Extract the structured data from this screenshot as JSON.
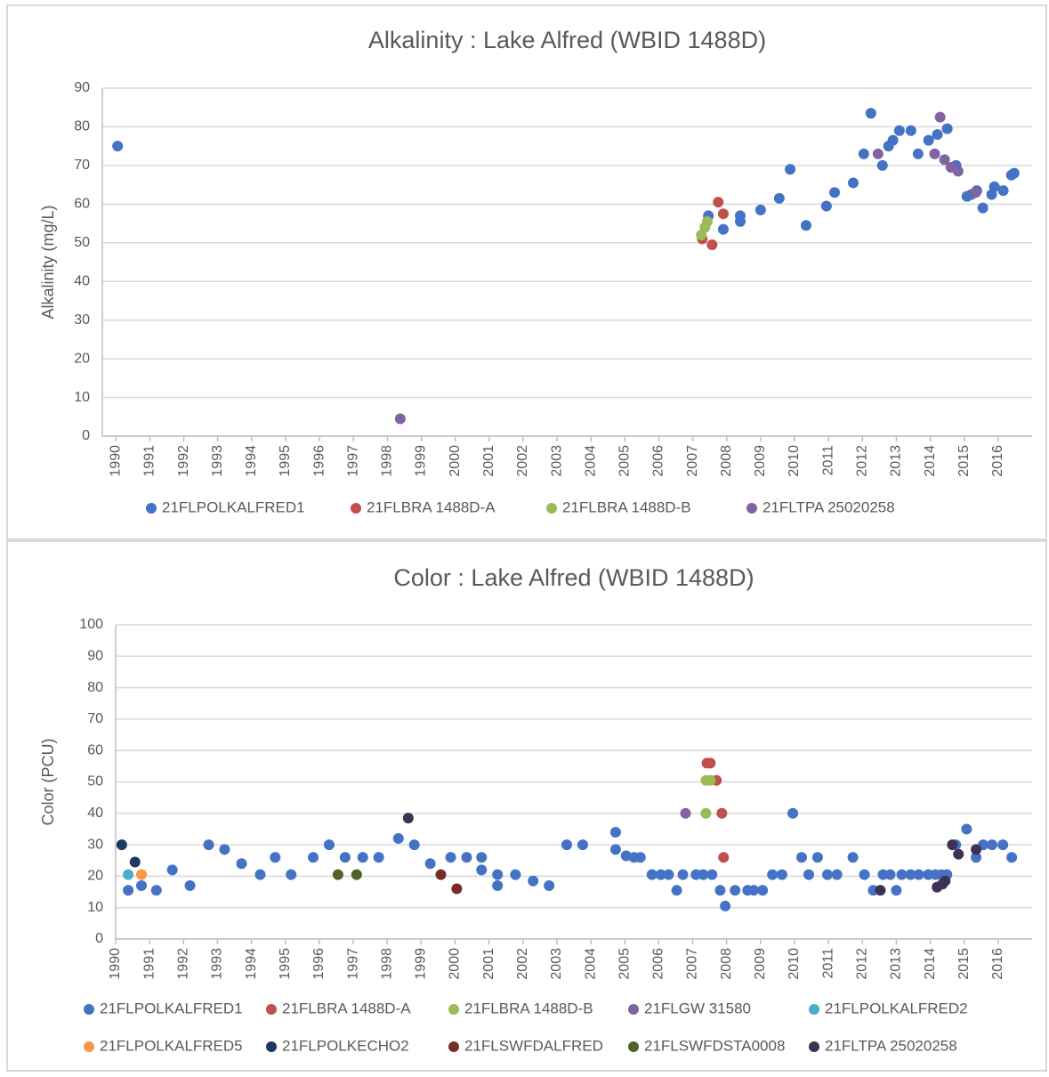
{
  "chart_data": [
    {
      "type": "scatter",
      "title": "Alkalinity : Lake Alfred (WBID 1488D)",
      "y_label": "Alkalinity (mg/L)",
      "xlim": [
        1989.6,
        2017
      ],
      "xticks": [
        1990,
        1991,
        1992,
        1993,
        1994,
        1995,
        1996,
        1997,
        1998,
        1999,
        2000,
        2001,
        2002,
        2003,
        2004,
        2005,
        2006,
        2007,
        2008,
        2009,
        2010,
        2011,
        2012,
        2013,
        2014,
        2015,
        2016
      ],
      "ylim": [
        0,
        90
      ],
      "yticks": [
        0,
        10,
        20,
        30,
        40,
        50,
        60,
        70,
        80,
        90
      ],
      "grid": true,
      "legend": "bottom",
      "series": [
        {
          "name": "21FLPOLKALFRED1",
          "color": "#4472c4",
          "x": [
            1990.05,
            2007.46,
            2007.9,
            2008.4,
            2008.4,
            2009.0,
            2009.55,
            2009.87,
            2010.34,
            2010.94,
            2011.18,
            2011.73,
            2012.04,
            2012.25,
            2012.59,
            2012.77,
            2012.9,
            2013.09,
            2013.43,
            2013.64,
            2013.95,
            2014.21,
            2014.5,
            2014.76,
            2015.08,
            2015.21,
            2015.37,
            2015.55,
            2015.81,
            2015.89,
            2016.15,
            2016.39,
            2016.47
          ],
          "values": [
            75,
            57,
            53.5,
            57,
            55.5,
            58.5,
            61.5,
            69,
            54.5,
            59.5,
            63,
            65.5,
            73,
            83.5,
            70,
            75,
            76.5,
            79,
            79,
            73,
            76.5,
            78,
            79.5,
            70,
            62,
            62.5,
            63.5,
            59,
            62.5,
            64.5,
            63.5,
            67.5,
            68
          ]
        },
        {
          "name": "21FLBRA 1488D-A",
          "color": "#c0504d",
          "x": [
            2007.28,
            2007.57,
            2007.75,
            2007.9
          ],
          "values": [
            51,
            49.5,
            60.5,
            57.5
          ]
        },
        {
          "name": "21FLBRA 1488D-B",
          "color": "#9bbb59",
          "x": [
            2007.25,
            2007.36,
            2007.43
          ],
          "values": [
            52,
            54,
            55.5
          ]
        },
        {
          "name": "21FLTPA 25020258",
          "color": "#8064a2",
          "x": [
            1998.38,
            2012.46,
            2014.29,
            2014.13,
            2014.42,
            2014.61,
            2014.82,
            2015.34
          ],
          "values": [
            4.5,
            73,
            82.5,
            73,
            71.5,
            69.5,
            68.5,
            63
          ]
        }
      ]
    },
    {
      "type": "scatter",
      "title": "Color : Lake Alfred (WBID 1488D)",
      "y_label": "Color (PCU)",
      "xlim": [
        1990,
        2017
      ],
      "xticks": [
        1990,
        1991,
        1992,
        1993,
        1994,
        1995,
        1996,
        1997,
        1998,
        1999,
        2000,
        2001,
        2002,
        2003,
        2004,
        2005,
        2006,
        2007,
        2008,
        2009,
        2010,
        2011,
        2012,
        2013,
        2014,
        2015,
        2016
      ],
      "ylim": [
        0,
        100
      ],
      "yticks": [
        0,
        10,
        20,
        30,
        40,
        50,
        60,
        70,
        80,
        90,
        100
      ],
      "grid": true,
      "legend": "bottom",
      "series": [
        {
          "name": "21FLPOLKALFRED1",
          "color": "#4472c4",
          "x": [
            1990.37,
            1990.76,
            1991.2,
            1991.67,
            1992.19,
            1992.74,
            1993.21,
            1993.71,
            1994.26,
            1994.7,
            1995.17,
            1995.82,
            1996.29,
            1996.76,
            1997.28,
            1997.75,
            1998.33,
            1998.8,
            1999.27,
            1999.87,
            2000.34,
            2000.78,
            2000.78,
            2001.25,
            2001.25,
            2001.78,
            2002.3,
            2002.77,
            2003.29,
            2003.76,
            2004.73,
            2004.73,
            2005.04,
            2005.27,
            2005.46,
            2005.8,
            2006.06,
            2006.29,
            2006.53,
            2006.71,
            2007.1,
            2007.31,
            2007.57,
            2007.81,
            2007.96,
            2008.25,
            2008.62,
            2008.8,
            2009.06,
            2009.35,
            2009.63,
            2009.95,
            2010.21,
            2010.42,
            2010.68,
            2010.97,
            2011.25,
            2011.72,
            2012.06,
            2012.32,
            2012.61,
            2012.82,
            2013.0,
            2013.16,
            2013.42,
            2013.66,
            2013.94,
            2014.15,
            2014.33,
            2014.49,
            2014.75,
            2015.07,
            2015.35,
            2015.56,
            2015.82,
            2016.14,
            2016.4
          ],
          "values": [
            15.5,
            17,
            15.5,
            22,
            17,
            30,
            28.5,
            24,
            20.5,
            26,
            20.5,
            26,
            30,
            26,
            26,
            26,
            32,
            30,
            24,
            26,
            26,
            26,
            22,
            20.5,
            17,
            20.5,
            18.5,
            17,
            30,
            30,
            34,
            28.5,
            26.5,
            26,
            26,
            20.5,
            20.5,
            20.5,
            15.5,
            20.5,
            20.5,
            20.5,
            20.5,
            15.5,
            10.5,
            15.5,
            15.5,
            15.5,
            15.5,
            20.5,
            20.5,
            40,
            26,
            20.5,
            26,
            20.5,
            20.5,
            26,
            20.5,
            15.5,
            20.5,
            20.5,
            15.5,
            20.5,
            20.5,
            20.5,
            20.5,
            20.5,
            20.5,
            20.5,
            30,
            35,
            26,
            30,
            30,
            30,
            26
          ]
        },
        {
          "name": "21FLBRA 1488D-A",
          "color": "#c0504d",
          "x": [
            2007.42,
            2007.52,
            2007.7,
            2007.86,
            2007.91
          ],
          "values": [
            56,
            56,
            50.5,
            40,
            26
          ]
        },
        {
          "name": "21FLBRA 1488D-B",
          "color": "#9bbb59",
          "x": [
            2007.39,
            2007.52,
            2007.39
          ],
          "values": [
            50.5,
            50.5,
            40
          ]
        },
        {
          "name": "21FLGW  31580",
          "color": "#8064a2",
          "x": [
            2006.79
          ],
          "values": [
            40
          ]
        },
        {
          "name": "21FLPOLKALFRED2",
          "color": "#4bacc6",
          "x": [
            1990.37
          ],
          "values": [
            20.5
          ]
        },
        {
          "name": "21FLPOLKALFRED5",
          "color": "#f79646",
          "x": [
            1990.76
          ],
          "values": [
            20.5
          ]
        },
        {
          "name": "21FLPOLKECHO2",
          "color": "#1f3864",
          "x": [
            1990.18,
            1990.57
          ],
          "values": [
            30,
            24.5
          ]
        },
        {
          "name": "21FLSWFDALFRED",
          "color": "#772c2a",
          "x": [
            1999.58,
            2000.05
          ],
          "values": [
            20.5,
            16
          ]
        },
        {
          "name": "21FLSWFDSTA0008",
          "color": "#4f6228",
          "x": [
            1996.55,
            1997.1
          ],
          "values": [
            20.5,
            20.5
          ]
        },
        {
          "name": "21FLTPA 25020258",
          "color": "#3f3151",
          "x": [
            1998.62,
            2012.53,
            2014.2,
            2014.36,
            2014.44,
            2014.65,
            2014.83,
            2015.35
          ],
          "values": [
            38.5,
            15.5,
            16.5,
            17.5,
            18.5,
            30,
            27,
            28.5
          ]
        }
      ]
    }
  ]
}
